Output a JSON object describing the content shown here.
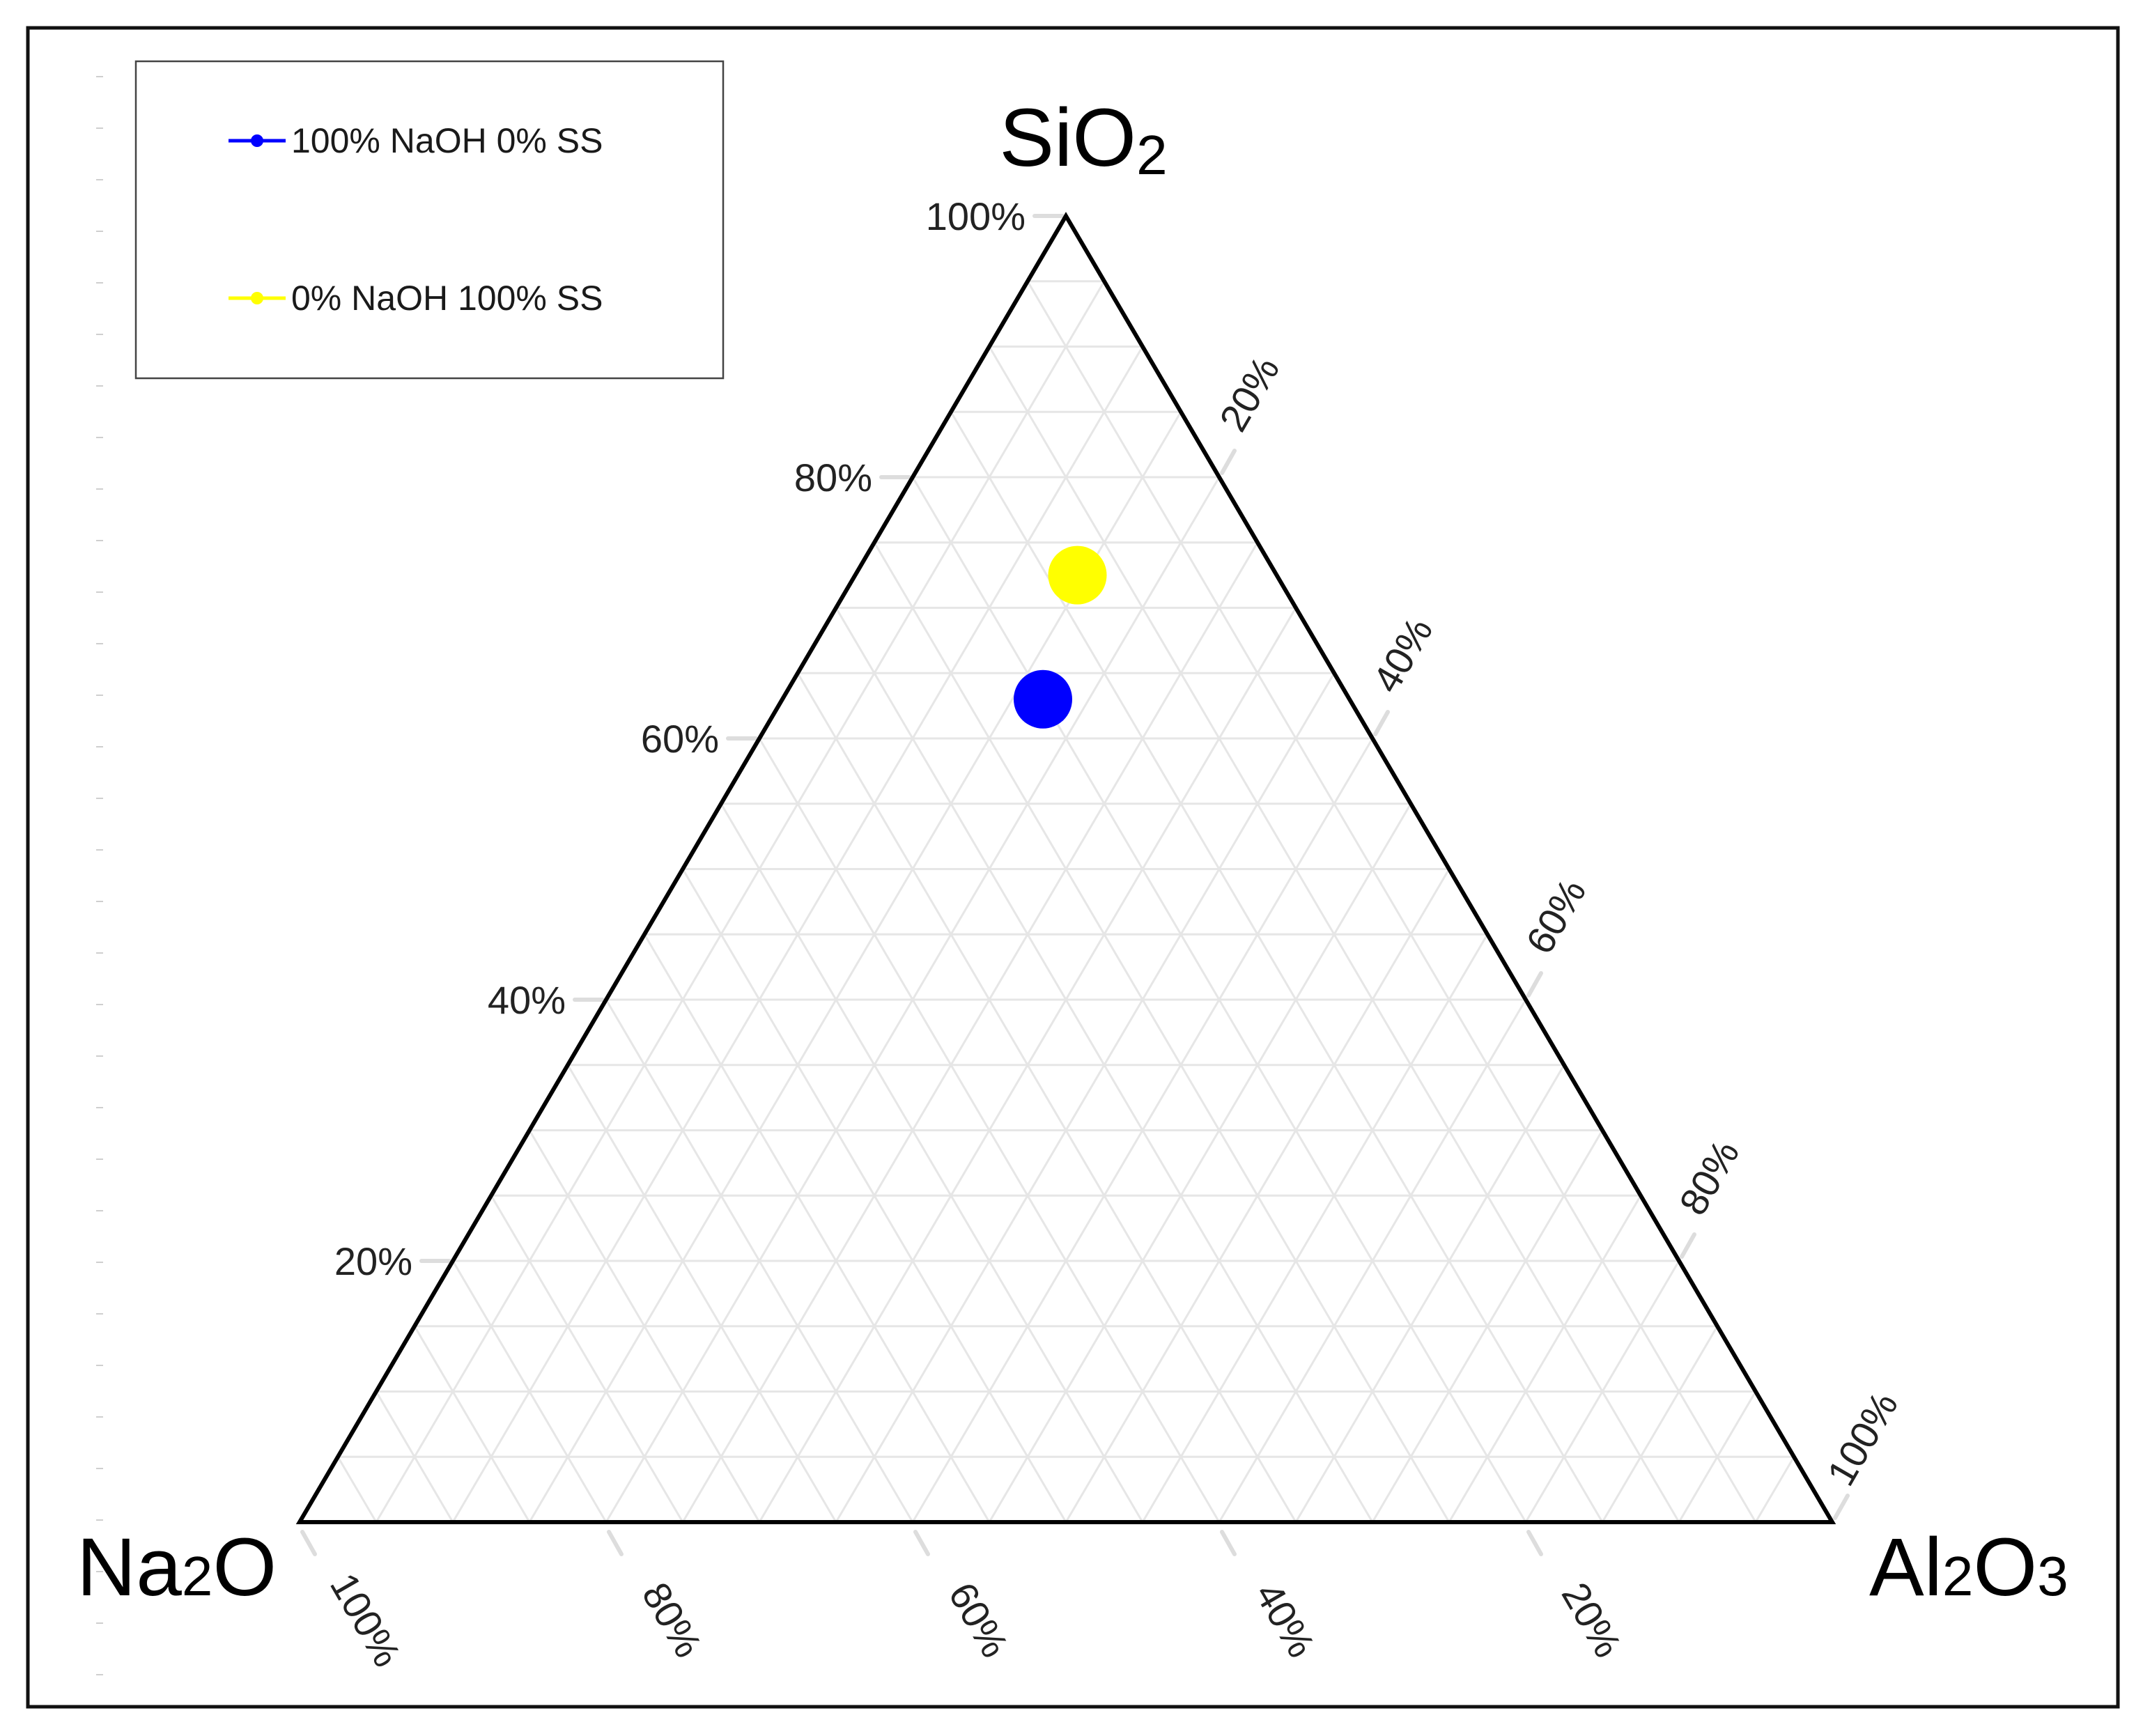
{
  "chart_data": {
    "type": "scatter",
    "subtype": "ternary",
    "vertices": {
      "top": {
        "label": "SiO",
        "sub": "2"
      },
      "left": {
        "label_parts": [
          "Na",
          "2",
          "O"
        ]
      },
      "right": {
        "label_parts": [
          "Al",
          "2",
          "O",
          "3"
        ]
      }
    },
    "left_axis_ticks": [
      "20%",
      "40%",
      "60%",
      "80%",
      "100%"
    ],
    "right_axis_ticks": [
      "20%",
      "40%",
      "60%",
      "80%",
      "100%"
    ],
    "bottom_axis_ticks": [
      "100%",
      "80%",
      "60%",
      "40%",
      "20%"
    ],
    "grid": true,
    "grid_step": 0.05,
    "legend_position": "top-left",
    "series": [
      {
        "name": "100% NaOH 0% SS",
        "color": "#0000ff",
        "points": [
          {
            "SiO2": 0.63,
            "Na2O": 0.2,
            "Al2O3": 0.17
          }
        ]
      },
      {
        "name": "0% NaOH 100% SS",
        "color": "#ffff00",
        "points": [
          {
            "SiO2": 0.725,
            "Na2O": 0.13,
            "Al2O3": 0.145
          }
        ]
      }
    ]
  }
}
